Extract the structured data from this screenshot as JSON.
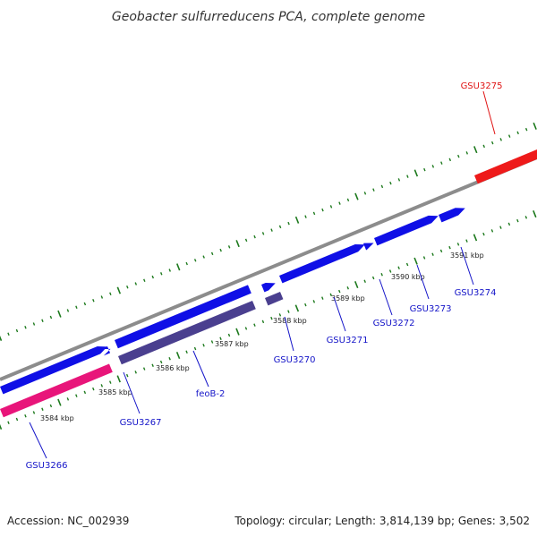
{
  "title": "Geobacter sulfurreducens PCA, complete genome",
  "footer": {
    "accession": "Accession: NC_002939",
    "summary": "Topology: circular; Length: 3,814,139 bp; Genes: 3,502"
  },
  "colors": {
    "backbone": "#8c8c8c",
    "gene_forward": "#0f0fe6",
    "gene_dark": "#4a3f8f",
    "gene_pink": "#e8157a",
    "gene_red": "#ee1a1a",
    "tick": "#1e7a1e",
    "label_blue": "#1414c8",
    "label_red": "#e01414"
  },
  "kbp_labels": [
    "3584 kbp",
    "3585 kbp",
    "3586 kbp",
    "3587 kbp",
    "3588 kbp",
    "3589 kbp",
    "3590 kbp",
    "3591 kbp"
  ],
  "gene_labels": [
    {
      "name": "GSU3266",
      "color": "blue"
    },
    {
      "name": "GSU3267",
      "color": "blue"
    },
    {
      "name": "feoB-2",
      "color": "blue"
    },
    {
      "name": "GSU3270",
      "color": "blue"
    },
    {
      "name": "GSU3271",
      "color": "blue"
    },
    {
      "name": "GSU3272",
      "color": "blue"
    },
    {
      "name": "GSU3273",
      "color": "blue"
    },
    {
      "name": "GSU3274",
      "color": "blue"
    },
    {
      "name": "GSU3275",
      "color": "red"
    }
  ]
}
